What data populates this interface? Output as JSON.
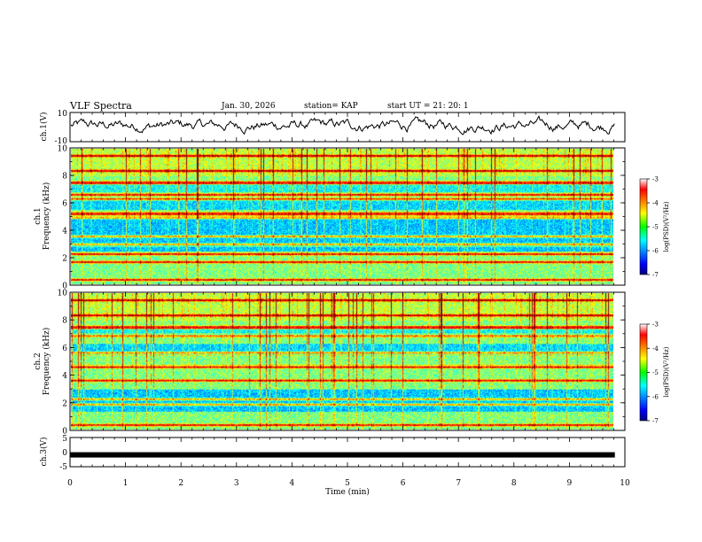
{
  "header": {
    "title": "VLF Spectra",
    "date": "Jan. 30, 2026",
    "station": "station= KAP",
    "start": "start  UT  =   21: 20: 1"
  },
  "chart_data": [
    {
      "type": "line",
      "name": "ch1-waveform",
      "ylabel": "ch.1(V)",
      "ylim": [
        -10,
        10
      ],
      "y_ticks": [
        "10",
        "-10"
      ],
      "x_range_min": [
        0,
        9.82
      ],
      "description_values": "noisy waveform amplitude roughly between -5 and 8 V"
    },
    {
      "type": "heatmap",
      "name": "ch1-spectrogram",
      "ylabel": "ch.1\nFrequency (kHz)",
      "ylabel_line1": "ch.1",
      "ylabel_line2": "Frequency (kHz)",
      "ylim": [
        0,
        10
      ],
      "y_ticks": [
        "0",
        "2",
        "4",
        "6",
        "8",
        "10"
      ],
      "xlim": [
        0,
        10
      ],
      "colorbar": {
        "label": "log(PSD)(V²/Hz)",
        "range": [
          -7,
          -3
        ],
        "ticks": [
          "-3",
          "-4",
          "-5",
          "-6",
          "-7"
        ]
      },
      "bands_khz": [
        0.3,
        1.6,
        2.2,
        2.9,
        3.5,
        4.9,
        5.2,
        6.3,
        6.6,
        7.5,
        8.4,
        9.5
      ]
    },
    {
      "type": "heatmap",
      "name": "ch2-spectrogram",
      "ylabel": "ch.2\nFrequency (kHz)",
      "ylabel_line1": "ch.2",
      "ylabel_line2": "Frequency (kHz)",
      "ylim": [
        0,
        10
      ],
      "y_ticks": [
        "0",
        "2",
        "4",
        "6",
        "8",
        "10"
      ],
      "xlim": [
        0,
        10
      ],
      "colorbar": {
        "label": "log(PSD)(V²/Hz)",
        "range": [
          -7,
          -3
        ],
        "ticks": [
          "-3",
          "-4",
          "-5",
          "-6",
          "-7"
        ]
      },
      "bands_khz": [
        0.3,
        1.8,
        2.2,
        3.6,
        4.6,
        5.6,
        6.9,
        7.5,
        8.4,
        9.5
      ]
    },
    {
      "type": "line",
      "name": "ch3-waveform",
      "ylabel": "ch.3(V)",
      "ylim": [
        -5,
        5
      ],
      "y_ticks": [
        "5",
        "0",
        "-5"
      ],
      "level": -1
    }
  ],
  "x_axis": {
    "label": "Time (min)",
    "range": [
      0,
      10
    ],
    "ticks": [
      "0",
      "1",
      "2",
      "3",
      "4",
      "5",
      "6",
      "7",
      "8",
      "9",
      "10"
    ]
  }
}
